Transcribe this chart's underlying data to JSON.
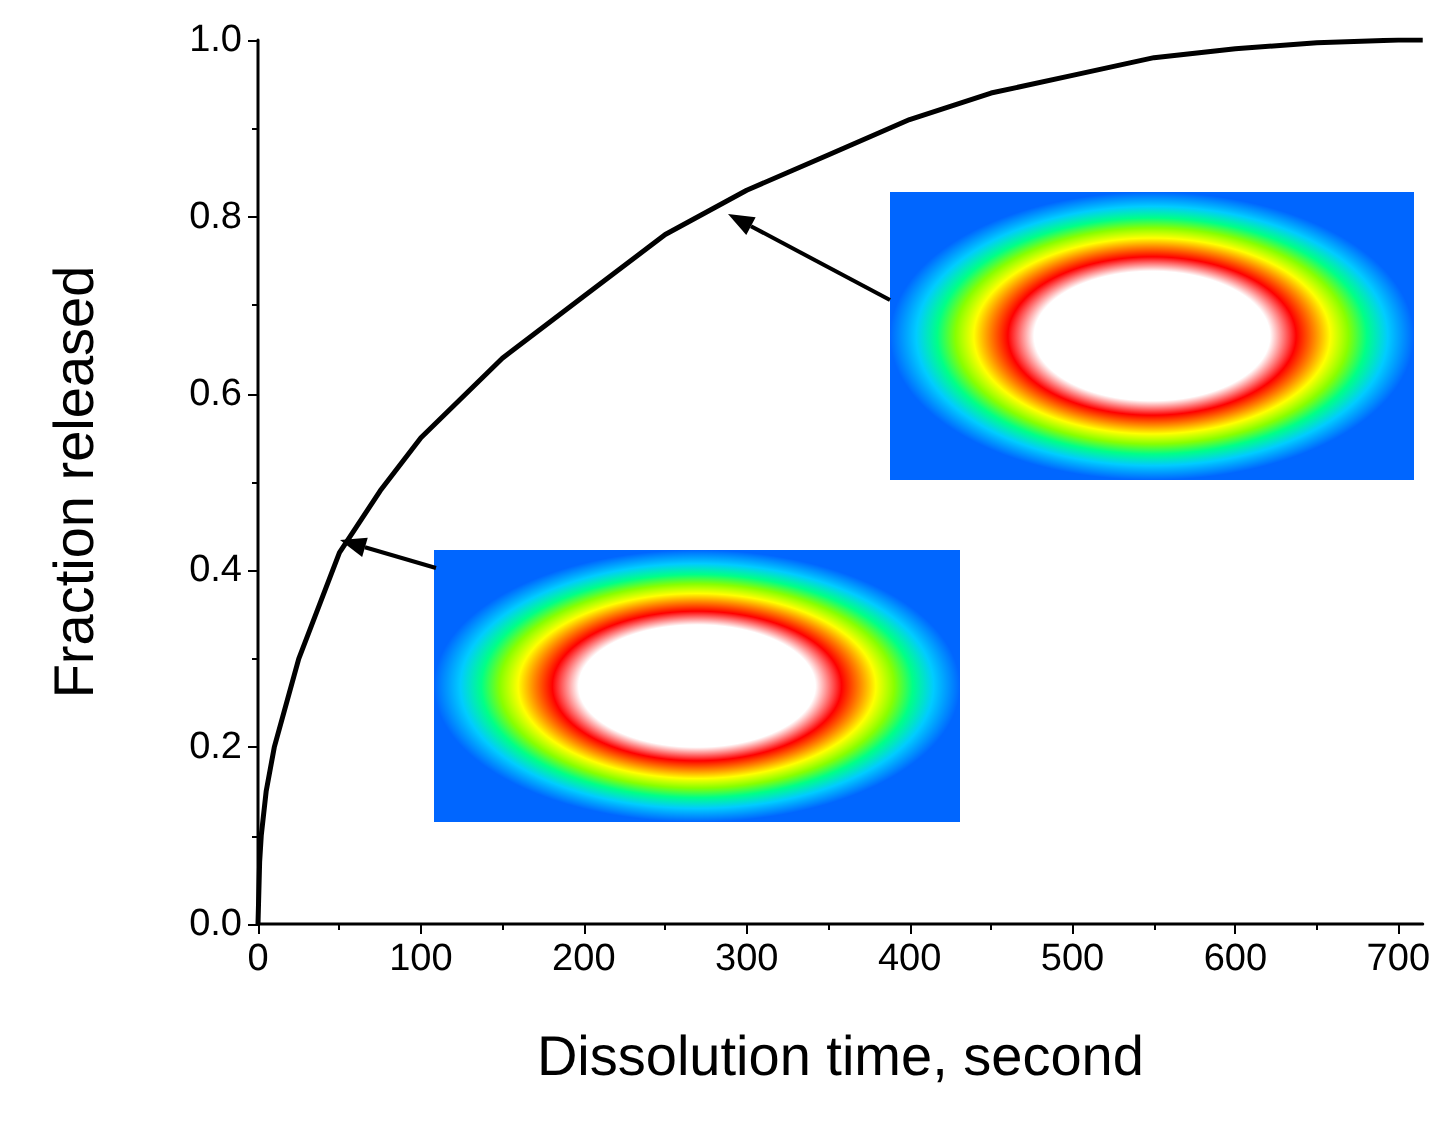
{
  "chart_data": {
    "type": "line",
    "xlabel": "Dissolution time, second",
    "ylabel": "Fraction released",
    "x": [
      0,
      1,
      2,
      5,
      10,
      25,
      50,
      75,
      100,
      150,
      200,
      250,
      300,
      350,
      400,
      450,
      500,
      550,
      600,
      650,
      700,
      715
    ],
    "values": [
      0,
      0.07,
      0.1,
      0.15,
      0.2,
      0.3,
      0.42,
      0.49,
      0.55,
      0.64,
      0.71,
      0.78,
      0.83,
      0.87,
      0.91,
      0.94,
      0.96,
      0.98,
      0.99,
      0.997,
      1.0,
      1.0
    ],
    "color": "#000000",
    "xlim": [
      0,
      715
    ],
    "xticks": [
      0,
      100,
      200,
      300,
      400,
      500,
      600,
      700
    ],
    "ylim": [
      0,
      1
    ],
    "yticks": [
      {
        "value": 0,
        "label": "0.0"
      },
      0.2,
      0.4,
      0.6,
      0.8,
      {
        "value": 1,
        "label": "1.0"
      }
    ],
    "grid": false,
    "marker": "none",
    "line_style": "solid"
  }
}
